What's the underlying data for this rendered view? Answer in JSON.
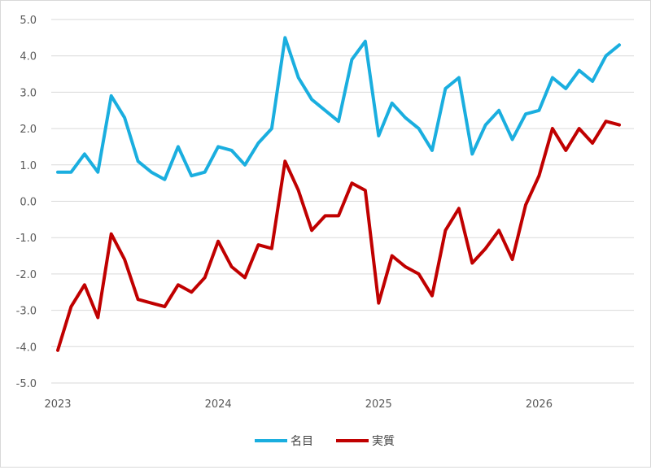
{
  "chart_data": {
    "type": "line",
    "title": "",
    "xlabel": "",
    "ylabel": "",
    "ylim": [
      -5.0,
      5.0
    ],
    "y_ticks": [
      "5.0",
      "4.0",
      "3.0",
      "2.0",
      "1.0",
      "0.0",
      "-1.0",
      "-2.0",
      "-3.0",
      "-4.0",
      "-5.0"
    ],
    "x_range": [
      0,
      42
    ],
    "x_ticks": [
      {
        "x": 0,
        "label": "2023"
      },
      {
        "x": 12,
        "label": "2024"
      },
      {
        "x": 24,
        "label": "2025"
      },
      {
        "x": 36,
        "label": "2026"
      }
    ],
    "grid": "horizontal",
    "legend_position": "bottom",
    "series": [
      {
        "name": "名目",
        "color": "#1aaedf",
        "values": [
          0.8,
          0.8,
          1.3,
          0.8,
          2.9,
          2.3,
          1.1,
          0.8,
          0.6,
          1.5,
          0.7,
          0.8,
          1.5,
          1.4,
          1.0,
          1.6,
          2.0,
          4.5,
          3.4,
          2.8,
          2.5,
          2.2,
          3.9,
          4.4,
          1.8,
          2.7,
          2.3,
          2.0,
          1.4,
          3.1,
          3.4,
          1.3,
          2.1,
          2.5,
          1.7,
          2.4,
          2.5,
          3.4,
          3.1,
          3.6,
          3.3,
          4.0,
          4.3
        ]
      },
      {
        "name": "実質",
        "color": "#c00000",
        "values": [
          -4.1,
          -2.9,
          -2.3,
          -3.2,
          -0.9,
          -1.6,
          -2.7,
          -2.8,
          -2.9,
          -2.3,
          -2.5,
          -2.1,
          -1.1,
          -1.8,
          -2.1,
          -1.2,
          -1.3,
          1.1,
          0.3,
          -0.8,
          -0.4,
          -0.4,
          0.5,
          0.3,
          -2.8,
          -1.5,
          -1.8,
          -2.0,
          -2.6,
          -0.8,
          -0.2,
          -1.7,
          -1.3,
          -0.8,
          -1.6,
          -0.1,
          0.7,
          2.0,
          1.4,
          2.0,
          1.6,
          2.2,
          2.1
        ]
      }
    ]
  }
}
